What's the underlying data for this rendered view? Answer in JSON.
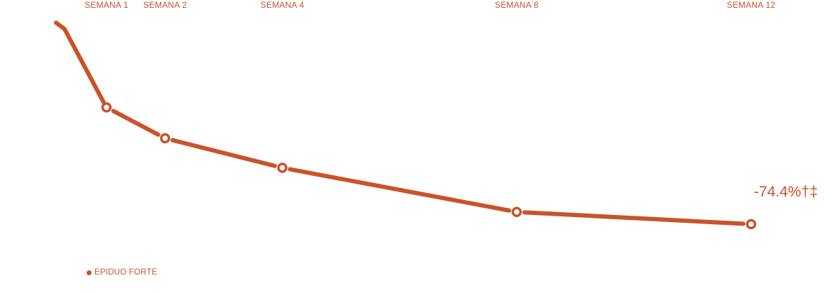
{
  "chart_data": {
    "type": "line",
    "categories": [
      "SEMANA 1",
      "SEMANA 2",
      "SEMANA 4",
      "SEMANA 8",
      "SEMANA 12"
    ],
    "x": [
      1,
      2,
      4,
      8,
      12
    ],
    "series": [
      {
        "name": "EPIDUO FORTE",
        "values": [
          -30.5,
          -42.1,
          -53.2,
          -69.8,
          -74.4
        ],
        "color": "#c9532a"
      }
    ],
    "start_value": 0,
    "end_label": "-74.4%†‡",
    "ylim": [
      -100,
      0
    ],
    "legend_position": "bottom-left",
    "grid": false
  }
}
